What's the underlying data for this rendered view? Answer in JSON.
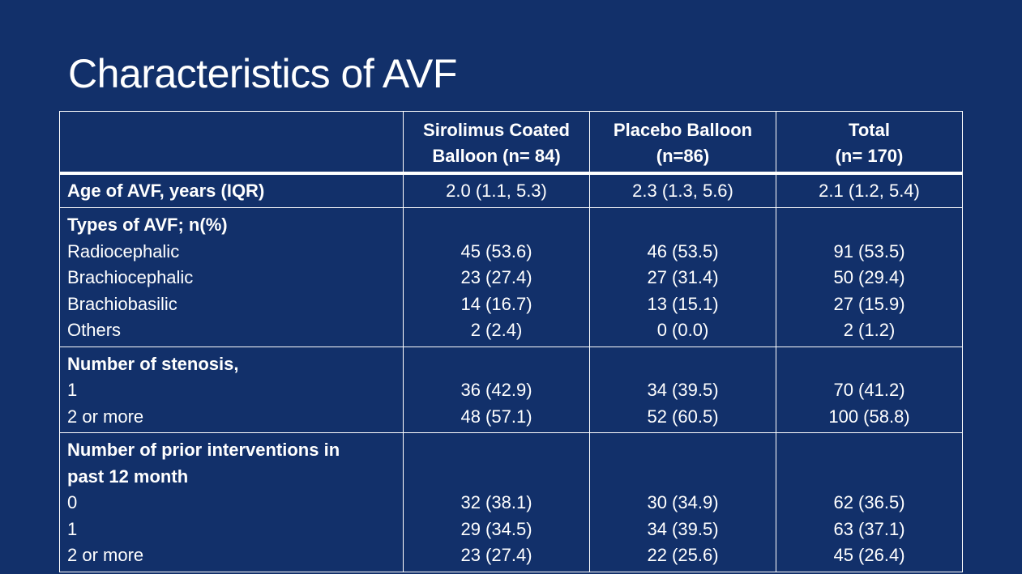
{
  "slide_title": "Characteristics of AVF",
  "table": {
    "headers": [
      "",
      [
        "Sirolimus Coated",
        "Balloon (n= 84)"
      ],
      [
        "Placebo Balloon",
        "(n=86)"
      ],
      [
        "Total",
        "(n= 170)"
      ]
    ],
    "age": {
      "label": "Age of AVF, years (IQR)",
      "values": [
        "2.0 (1.1, 5.3)",
        "2.3 (1.3, 5.6)",
        "2.1 (1.2, 5.4)"
      ]
    },
    "types": {
      "heading": "Types of AVF; n(%)",
      "rows": [
        {
          "label": "Radiocephalic",
          "values": [
            "45 (53.6)",
            "46 (53.5)",
            "91 (53.5)"
          ]
        },
        {
          "label": "Brachiocephalic",
          "values": [
            "23 (27.4)",
            "27 (31.4)",
            "50 (29.4)"
          ]
        },
        {
          "label": "Brachiobasilic",
          "values": [
            "14 (16.7)",
            "13 (15.1)",
            "27 (15.9)"
          ]
        },
        {
          "label": "Others",
          "values": [
            "2 (2.4)",
            "0 (0.0)",
            "2 (1.2)"
          ]
        }
      ]
    },
    "stenosis": {
      "heading": "Number of stenosis,",
      "rows": [
        {
          "label": "1",
          "values": [
            "36 (42.9)",
            "34 (39.5)",
            "70 (41.2)"
          ]
        },
        {
          "label": "2 or more",
          "values": [
            "48 (57.1)",
            "52 (60.5)",
            "100 (58.8)"
          ]
        }
      ]
    },
    "interventions": {
      "heading": [
        "Number of prior interventions in",
        "past 12 month"
      ],
      "rows": [
        {
          "label": "0",
          "values": [
            "32 (38.1)",
            "30 (34.9)",
            "62 (36.5)"
          ]
        },
        {
          "label": "1",
          "values": [
            "29 (34.5)",
            "34 (39.5)",
            "63 (37.1)"
          ]
        },
        {
          "label": "2 or more",
          "values": [
            "23 (27.4)",
            "22 (25.6)",
            "45 (26.4)"
          ]
        }
      ]
    }
  }
}
